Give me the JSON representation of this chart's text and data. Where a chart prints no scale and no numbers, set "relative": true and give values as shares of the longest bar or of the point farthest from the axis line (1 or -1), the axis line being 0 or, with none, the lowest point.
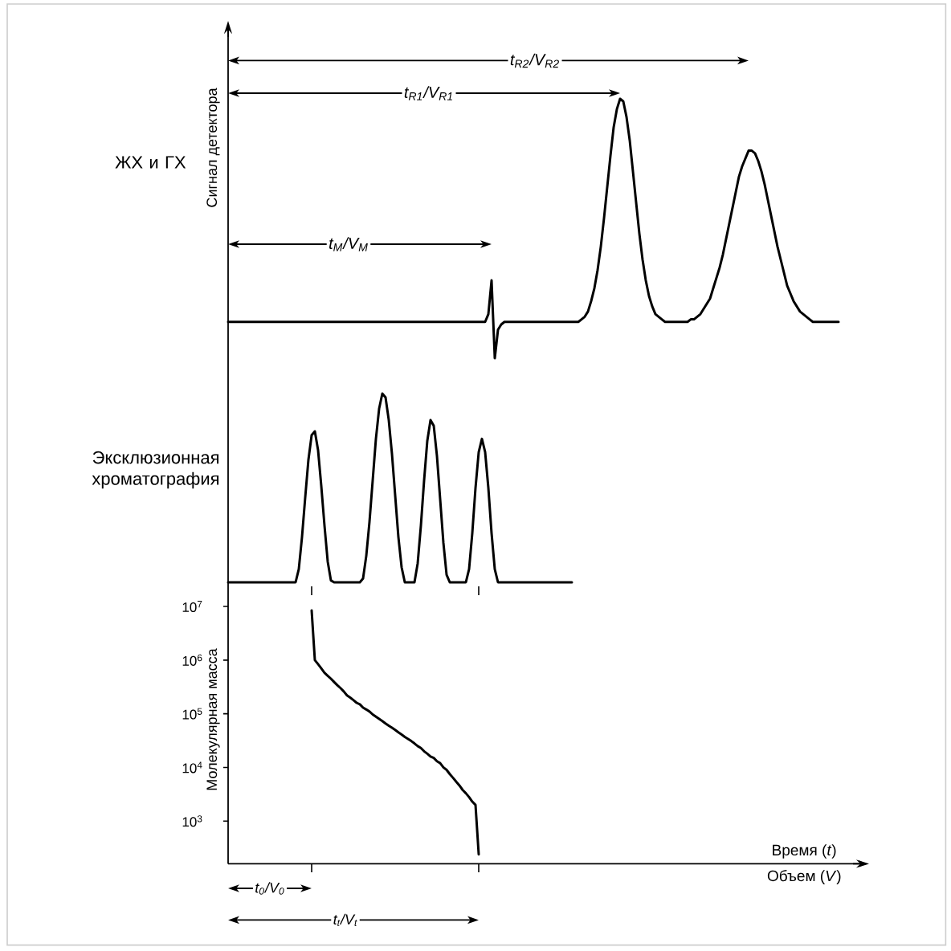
{
  "chart_data": [
    {
      "type": "line",
      "title": "ЖХ и ГХ",
      "ylabel": "Сигнал детектора",
      "relative": true,
      "color": "#000000",
      "categories": [
        null,
        null,
        null,
        null,
        null,
        null,
        null,
        null,
        null,
        null,
        null,
        null,
        null,
        null,
        null,
        null,
        null,
        null,
        null,
        null,
        null,
        null,
        null,
        null,
        null,
        null,
        null,
        null,
        null,
        null,
        null,
        null,
        null,
        null,
        null,
        null,
        null,
        null,
        null,
        null,
        null,
        null,
        null,
        null,
        null,
        null,
        null,
        null,
        null,
        null,
        null,
        null,
        null,
        null,
        null,
        null,
        null,
        null,
        null,
        null,
        null,
        null,
        null,
        null,
        null,
        null,
        null,
        null,
        null,
        null,
        null,
        null,
        null,
        null,
        null,
        null,
        null,
        null,
        null,
        null,
        null,
        null,
        null,
        null,
        null,
        null,
        null,
        null,
        null,
        null,
        null,
        null,
        null,
        null,
        null,
        null,
        null,
        null,
        null,
        null,
        null,
        null,
        null,
        null,
        null,
        null,
        null,
        null,
        null,
        null,
        null,
        null,
        null,
        null,
        null,
        null,
        null,
        null,
        null,
        null,
        null,
        null,
        null,
        null,
        null,
        null,
        null,
        null,
        null,
        null,
        null,
        null,
        null,
        null,
        null,
        null,
        null,
        null,
        null,
        null,
        null,
        null,
        null,
        null,
        null,
        null,
        null,
        null,
        null,
        null,
        null,
        null,
        null,
        null,
        null,
        null,
        null,
        null,
        null,
        null,
        null,
        null,
        null,
        null,
        null,
        null,
        null,
        null,
        null,
        null,
        null,
        null,
        null,
        null,
        null,
        null,
        null,
        null,
        null,
        null,
        null,
        null,
        null,
        null,
        null,
        null,
        null,
        null,
        null,
        null,
        null
      ],
      "values": [
        0.14,
        0.14,
        0.14,
        0.14,
        0.14,
        0.14,
        0.14,
        0.14,
        0.14,
        0.14,
        0.14,
        0.14,
        0.14,
        0.14,
        0.14,
        0.14,
        0.14,
        0.14,
        0.14,
        0.14,
        0.14,
        0.14,
        0.14,
        0.14,
        0.14,
        0.14,
        0.14,
        0.14,
        0.14,
        0.14,
        0.14,
        0.14,
        0.14,
        0.14,
        0.14,
        0.14,
        0.14,
        0.14,
        0.14,
        0.14,
        0.14,
        0.14,
        0.14,
        0.14,
        0.14,
        0.14,
        0.14,
        0.14,
        0.14,
        0.14,
        0.14,
        0.14,
        0.14,
        0.14,
        0.14,
        0.14,
        0.14,
        0.14,
        0.14,
        0.14,
        0.14,
        0.14,
        0.14,
        0.14,
        0.14,
        0.14,
        0.14,
        0.14,
        0.14,
        0.14,
        0.14,
        0.14,
        0.14,
        0.14,
        0.14,
        0.14,
        0.14,
        0.14,
        0.14,
        0.14,
        0.14,
        0.17,
        0.3,
        0,
        0.11,
        0.13,
        0.14,
        0.14,
        0.14,
        0.14,
        0.14,
        0.14,
        0.14,
        0.14,
        0.14,
        0.14,
        0.14,
        0.14,
        0.14,
        0.14,
        0.14,
        0.14,
        0.14,
        0.14,
        0.14,
        0.14,
        0.14,
        0.14,
        0.14,
        0.14,
        0.15,
        0.16,
        0.18,
        0.22,
        0.27,
        0.34,
        0.43,
        0.54,
        0.66,
        0.78,
        0.89,
        0.96,
        1,
        0.99,
        0.93,
        0.84,
        0.72,
        0.6,
        0.48,
        0.38,
        0.3,
        0.24,
        0.2,
        0.17,
        0.16,
        0.15,
        0.14,
        0.14,
        0.14,
        0.14,
        0.14,
        0.14,
        0.14,
        0.14,
        0.15,
        0.15,
        0.16,
        0.17,
        0.19,
        0.21,
        0.23,
        0.27,
        0.31,
        0.35,
        0.4,
        0.46,
        0.52,
        0.58,
        0.64,
        0.7,
        0.74,
        0.77,
        0.8,
        0.8,
        0.79,
        0.76,
        0.72,
        0.67,
        0.61,
        0.55,
        0.49,
        0.43,
        0.38,
        0.33,
        0.28,
        0.25,
        0.22,
        0.2,
        0.18,
        0.17,
        0.16,
        0.15,
        0.14,
        0.14,
        0.14,
        0.14,
        0.14,
        0.14,
        0.14,
        0.14,
        0.14
      ],
      "annotations": [
        {
          "text": "t$_{R2}$/V$_{R2}$"
        },
        {
          "text": "t$_{R1}$/V$_{R1}$"
        },
        {
          "text": "t$_{M}$/V$_{M}$"
        }
      ]
    },
    {
      "type": "line",
      "title": "Эксклюзионная хроматография",
      "relative": true,
      "color": "#000000",
      "categories": [
        null,
        null,
        null,
        null,
        null,
        null,
        null,
        null,
        null,
        null,
        null,
        null,
        null,
        null,
        null,
        null,
        null,
        null,
        null,
        null,
        null,
        null,
        null,
        null,
        null,
        null,
        null,
        null,
        null,
        null,
        null,
        null,
        null,
        null,
        null,
        null,
        null,
        null,
        null,
        null,
        null,
        null,
        null,
        null,
        null,
        null,
        null,
        null,
        null,
        null,
        null,
        null,
        null,
        null,
        null,
        null,
        null,
        null,
        null,
        null,
        null,
        null,
        null,
        null,
        null,
        null,
        null,
        null,
        null,
        null,
        null,
        null,
        null,
        null,
        null,
        null,
        null,
        null,
        null,
        null,
        null,
        null,
        null,
        null,
        null,
        null,
        null,
        null,
        null,
        null,
        null,
        null,
        null,
        null,
        null,
        null,
        null,
        null,
        null,
        null,
        null,
        null,
        null,
        null,
        null,
        null,
        null,
        null,
        null,
        null,
        null,
        null,
        null,
        null,
        null,
        null,
        null,
        null,
        null,
        null,
        null,
        null,
        null,
        null,
        null,
        null,
        null,
        null,
        null,
        null,
        null,
        null,
        null,
        null,
        null,
        null,
        null,
        null,
        null,
        null,
        null,
        null,
        null,
        null,
        null,
        null,
        null,
        null,
        null,
        null,
        null,
        null,
        null,
        null,
        null,
        null,
        null,
        null,
        null,
        null,
        null,
        null,
        null,
        null,
        null,
        null,
        null,
        null,
        null,
        null,
        null,
        null,
        null,
        null,
        null,
        null,
        null,
        null,
        null,
        null,
        null,
        null,
        null,
        null,
        null,
        null,
        null,
        null,
        null,
        null,
        null
      ],
      "values": [
        0,
        0,
        0,
        0,
        0,
        0,
        0,
        0,
        0,
        0,
        0,
        0,
        0,
        0,
        0,
        0,
        0,
        0,
        0,
        0,
        0,
        0,
        0.07,
        0.24,
        0.45,
        0.65,
        0.78,
        0.8,
        0.7,
        0.51,
        0.3,
        0.11,
        0.01,
        0,
        0,
        0,
        0,
        0,
        0,
        0,
        0,
        0,
        0.02,
        0.14,
        0.32,
        0.54,
        0.76,
        0.92,
        1,
        0.98,
        0.86,
        0.68,
        0.46,
        0.24,
        0.08,
        0,
        0,
        0,
        0,
        0.1,
        0.3,
        0.54,
        0.75,
        0.86,
        0.83,
        0.67,
        0.44,
        0.21,
        0.04,
        0,
        0,
        0,
        0,
        0,
        0,
        0.07,
        0.26,
        0.5,
        0.69,
        0.76,
        0.69,
        0.5,
        0.26,
        0.07,
        0,
        0,
        0,
        0,
        0,
        0,
        0,
        0,
        0,
        0,
        0,
        0,
        0,
        0,
        0,
        0,
        0,
        0,
        0,
        0,
        0,
        0,
        0,
        0,
        null,
        null,
        null,
        null,
        null,
        null,
        null,
        null,
        null,
        null,
        null,
        null,
        null,
        null,
        null,
        null,
        null,
        null,
        null,
        null,
        null,
        null,
        null,
        null,
        null,
        null,
        null,
        null,
        null,
        null,
        null,
        null,
        null,
        null,
        null,
        null,
        null,
        null,
        null,
        null,
        null,
        null,
        null,
        null,
        null,
        null,
        null,
        null,
        null,
        null,
        null,
        null,
        null,
        null,
        null,
        null,
        null,
        null,
        null,
        null,
        null,
        null,
        null,
        null,
        null,
        null,
        null,
        null,
        null,
        null,
        null,
        null,
        null,
        null,
        null,
        null,
        null,
        null,
        null,
        null,
        null,
        null,
        null
      ]
    },
    {
      "type": "line",
      "ylabel": "Молекулярная масса",
      "xlabel": "Время (*t*)",
      "log": true,
      "ylim": [
        160,
        28000000
      ],
      "yticks": [
        {
          "value": 1000,
          "label": "10$^{3}$"
        },
        {
          "value": 10000,
          "label": "10$^{4}$"
        },
        {
          "value": 100000,
          "label": "10$^{5}$"
        },
        {
          "value": 1000000,
          "label": "10$^{6}$"
        },
        {
          "value": 10000000,
          "label": "10$^{7}$"
        }
      ],
      "tick_labels": "y",
      "color": "#000000",
      "categories": [
        null,
        null,
        null,
        null,
        null,
        null,
        null,
        null,
        null,
        null,
        null,
        null,
        null,
        null,
        null,
        null,
        null,
        null,
        null,
        null,
        null,
        null,
        null,
        null,
        null,
        null,
        null,
        null,
        null,
        null,
        null,
        null,
        null,
        null,
        null,
        null,
        null,
        null,
        null,
        null,
        null,
        null,
        null,
        null,
        null,
        null,
        null,
        null,
        null,
        null,
        null,
        null,
        null,
        null,
        null,
        null,
        null,
        null,
        null,
        null,
        null,
        null,
        null,
        null,
        null,
        null,
        null,
        null,
        null,
        null,
        null,
        null,
        null,
        null,
        null,
        null,
        null,
        null,
        null,
        null,
        null,
        null,
        null,
        null,
        null,
        null,
        null,
        null,
        null,
        null,
        null,
        null,
        null,
        null,
        null,
        null,
        null,
        null,
        null,
        null,
        null,
        null,
        null,
        null,
        null,
        null,
        null,
        null,
        null,
        null,
        null,
        null,
        null,
        null,
        null,
        null,
        null,
        null,
        null,
        null,
        null,
        null,
        null,
        null,
        null,
        null,
        null,
        null,
        null,
        null,
        null,
        null,
        null,
        null,
        null,
        null,
        null,
        null,
        null,
        null,
        null,
        null,
        null,
        null,
        null,
        null,
        null,
        null,
        null,
        null,
        null,
        null,
        null,
        null,
        null,
        null,
        null,
        null,
        null,
        null,
        null,
        null,
        null,
        null,
        null,
        null,
        null,
        null,
        null,
        null,
        null,
        null,
        null,
        null,
        null,
        null,
        null,
        null,
        null,
        null,
        null,
        null,
        null,
        null,
        null,
        null,
        null,
        null,
        null,
        null,
        null
      ],
      "values": [
        null,
        null,
        null,
        null,
        null,
        null,
        null,
        null,
        null,
        null,
        null,
        null,
        null,
        null,
        null,
        null,
        null,
        null,
        null,
        null,
        null,
        null,
        null,
        null,
        null,
        null,
        8400000,
        1000000,
        840000,
        700000,
        580000,
        510000,
        450000,
        390000,
        340000,
        300000,
        260000,
        220000,
        200000,
        180000,
        160000,
        150000,
        130000,
        120000,
        110000,
        97000,
        88000,
        80000,
        73000,
        66000,
        60000,
        55000,
        50000,
        45000,
        41000,
        37000,
        34000,
        31000,
        28000,
        25000,
        23000,
        20000,
        18000,
        16000,
        15000,
        13000,
        12000,
        10000,
        9000,
        7500,
        6400,
        5400,
        4600,
        3800,
        3300,
        2800,
        2300,
        2000,
        240,
        null,
        null,
        null,
        null,
        null,
        null,
        null,
        null,
        null,
        null,
        null,
        null,
        null,
        null,
        null,
        null,
        null,
        null,
        null,
        null,
        null,
        null,
        null,
        null,
        null,
        null,
        null,
        null,
        null,
        null,
        null,
        null,
        null,
        null,
        null,
        null,
        null,
        null,
        null,
        null,
        null,
        null,
        null,
        null,
        null,
        null,
        null,
        null,
        null,
        null,
        null,
        null,
        null,
        null,
        null,
        null,
        null,
        null,
        null,
        null,
        null,
        null,
        null,
        null,
        null,
        null,
        null,
        null,
        null,
        null,
        null,
        null,
        null,
        null,
        null,
        null,
        null,
        null,
        null,
        null,
        null,
        null,
        null,
        null,
        null,
        null,
        null,
        null,
        null,
        null,
        null,
        null,
        null,
        null,
        null,
        null,
        null,
        null,
        null,
        null,
        null,
        null,
        null,
        null,
        null,
        null,
        null,
        null,
        null,
        null,
        null,
        null
      ],
      "annotations": [
        {
          "text": "t$_{0}$/V$_{0}$"
        },
        {
          "text": "t$_{t}$/V$_{t}$"
        },
        "Объем (*V*)"
      ]
    }
  ]
}
